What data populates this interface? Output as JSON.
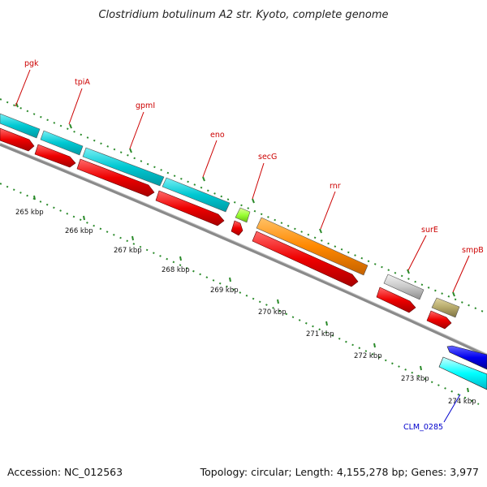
{
  "title": "Clostridium botulinum A2 str. Kyoto, complete genome",
  "footer": {
    "accession": "Accession: NC_012563",
    "summary": "Topology: circular; Length: 4,155,278 bp; Genes: 3,977"
  },
  "colors": {
    "gene_label": "#cc0000",
    "feature_label": "#0000cc",
    "cds_red": "#ee0000",
    "backbone": "#888888",
    "ticks": "#2a8a2a"
  },
  "kbp_labels": [
    "265 kbp",
    "266 kbp",
    "267 kbp",
    "268 kbp",
    "269 kbp",
    "270 kbp",
    "271 kbp",
    "272 kbp",
    "273 kbp",
    "274 kbp"
  ],
  "genes": [
    {
      "label": "pgk",
      "color": "#00c8d2"
    },
    {
      "label": "tpiA",
      "color": "#00c8d2"
    },
    {
      "label": "gpmI",
      "color": "#00c8d2"
    },
    {
      "label": "eno",
      "color": "#00c8d2"
    },
    {
      "label": "secG",
      "color": "#99ff33"
    },
    {
      "label": "rnr",
      "color": "#ff8800"
    },
    {
      "label": "surE",
      "color": "#bfbfbf"
    },
    {
      "label": "smpB",
      "color": "#b5a86a"
    }
  ],
  "feature": {
    "label": "CLM_0285",
    "color": "#0000ee",
    "inner_color": "#00ffff"
  }
}
